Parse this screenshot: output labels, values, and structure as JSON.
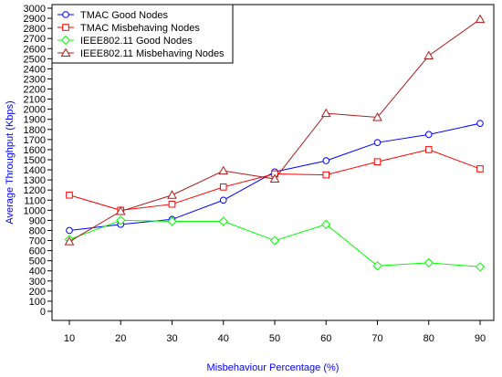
{
  "chart_data": {
    "type": "line",
    "title": "",
    "xlabel": "Misbehaviour Percentage (%)",
    "ylabel": "Average Throughput (Kbps)",
    "x": [
      10,
      20,
      30,
      40,
      50,
      60,
      70,
      80,
      90
    ],
    "xlim": [
      10,
      90
    ],
    "ylim": [
      0,
      3000
    ],
    "y_ticks": [
      0,
      100,
      200,
      300,
      400,
      500,
      600,
      700,
      800,
      900,
      1000,
      1100,
      1200,
      1300,
      1400,
      1500,
      1600,
      1700,
      1800,
      1900,
      2000,
      2100,
      2200,
      2300,
      2400,
      2500,
      2600,
      2700,
      2800,
      2900,
      3000
    ],
    "grid": false,
    "legend_position": "top-left",
    "series": [
      {
        "name": "TMAC Good Nodes",
        "color": "#0000ff",
        "marker": "circle",
        "values": [
          800,
          860,
          910,
          1100,
          1380,
          1490,
          1670,
          1750,
          1860
        ]
      },
      {
        "name": "TMAC Misbehaving Nodes",
        "color": "#ff0000",
        "marker": "square",
        "values": [
          1150,
          1000,
          1060,
          1230,
          1360,
          1350,
          1480,
          1600,
          1410
        ]
      },
      {
        "name": "IEEE802.11 Good Nodes",
        "color": "#00ff00",
        "marker": "diamond",
        "values": [
          710,
          900,
          890,
          890,
          700,
          860,
          450,
          480,
          440
        ]
      },
      {
        "name": "IEEE802.11 Misbehaving Nodes",
        "color": "#b01c1c",
        "marker": "triangle",
        "values": [
          690,
          990,
          1150,
          1390,
          1310,
          1960,
          1920,
          2530,
          2890
        ]
      }
    ]
  }
}
